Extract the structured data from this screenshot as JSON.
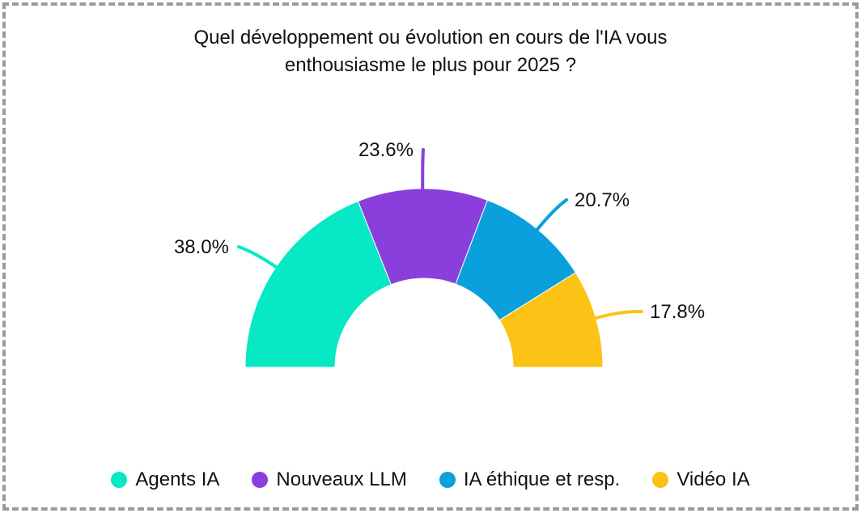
{
  "chart_data": {
    "type": "pie",
    "variant": "half-donut",
    "title_lines": [
      "Quel développement ou évolution en cours de l'IA vous",
      "enthousiasme le plus pour 2025 ?"
    ],
    "categories": [
      "Agents IA",
      "Nouveaux LLM",
      "IA éthique et resp.",
      "Vidéo IA"
    ],
    "values": [
      38.0,
      23.6,
      20.7,
      17.8
    ],
    "labels": [
      "38.0%",
      "23.6%",
      "20.7%",
      "17.8%"
    ],
    "colors": [
      "#07e8c5",
      "#8a3fdc",
      "#0aa0dc",
      "#fdc216"
    ],
    "legend_position": "bottom"
  }
}
